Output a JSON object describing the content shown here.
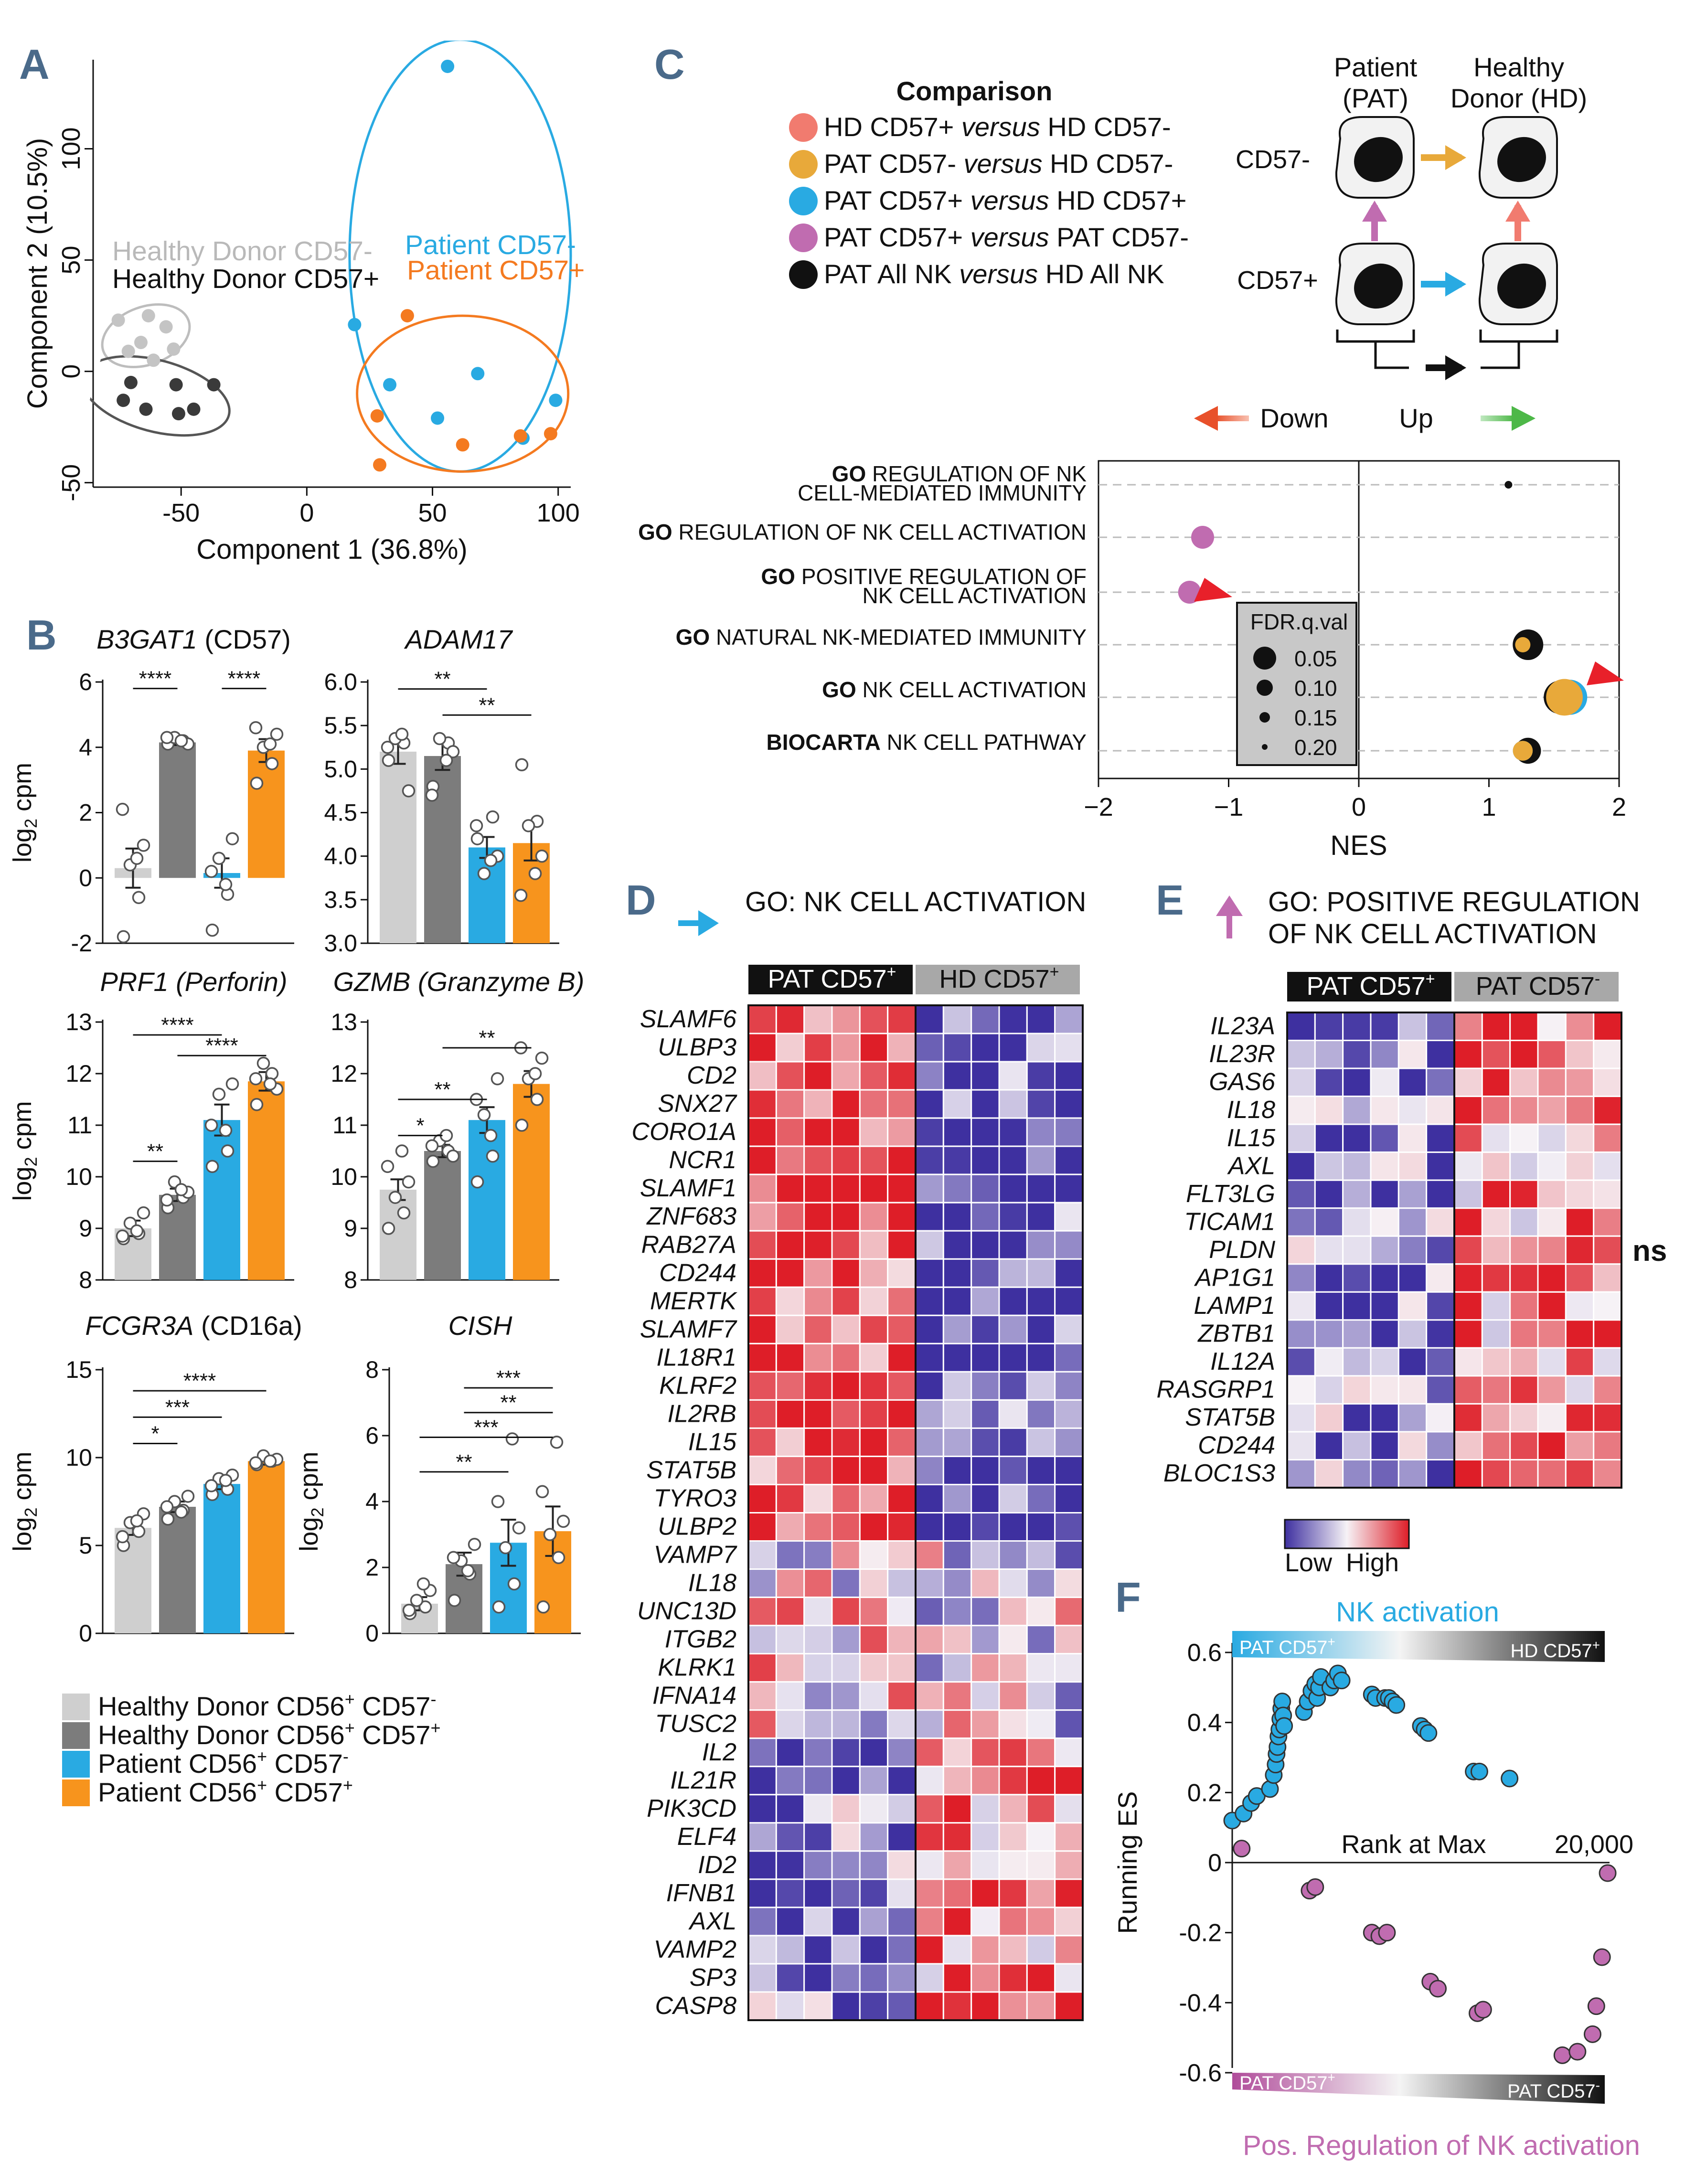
{
  "panel_letters": [
    "A",
    "B",
    "C",
    "D",
    "E",
    "F"
  ],
  "colors": {
    "hd_minus": "#cfcfcf",
    "hd_plus": "#7c7c7c",
    "pat_minus": "#29aae2",
    "pat_plus": "#f7941d",
    "salmon": "#f17b6f",
    "gold": "#e8a93a",
    "blue": "#29aae2",
    "purple": "#c06cb0",
    "black": "#111111",
    "low": "#4b3aa3",
    "high": "#d7262b",
    "arrow_red": "#e8202a"
  },
  "chart_data": [
    {
      "id": "A",
      "type": "scatter",
      "xlabel": "Component 1 (36.8%)",
      "ylabel": "Component 2 (10.5%)",
      "xlim": [
        -85,
        105
      ],
      "ylim": [
        -52,
        140
      ],
      "xticks": [
        "-50",
        "0",
        "50",
        "100"
      ],
      "yticks": [
        "-50",
        "0",
        "50",
        "100"
      ],
      "legend": [
        {
          "name": "Healthy Donor CD57-",
          "color": "#b9b9b9"
        },
        {
          "name": "Healthy Donor CD57+",
          "color": "#111111"
        },
        {
          "name": "Patient CD57-",
          "color": "#29aae2"
        },
        {
          "name": "Patient CD57+",
          "color": "#f47a20"
        }
      ],
      "series": [
        {
          "name": "Healthy Donor CD57-",
          "color": "#c4c4c4",
          "points": [
            [
              -75,
              23
            ],
            [
              -63,
              25
            ],
            [
              -56,
              20
            ],
            [
              -71,
              9
            ],
            [
              -61,
              5
            ],
            [
              -66,
              13
            ],
            [
              -53,
              10
            ]
          ]
        },
        {
          "name": "Healthy Donor CD57+",
          "color": "#3a3a3a",
          "points": [
            [
              -73,
              -13
            ],
            [
              -64,
              -17
            ],
            [
              -70,
              -5
            ],
            [
              -52,
              -6
            ],
            [
              -51,
              -19
            ],
            [
              -45,
              -17
            ],
            [
              -37,
              -6
            ]
          ]
        },
        {
          "name": "Patient CD57-",
          "color": "#29aae2",
          "points": [
            [
              56,
              137
            ],
            [
              19,
              21
            ],
            [
              33,
              -6
            ],
            [
              68,
              -1
            ],
            [
              99,
              -13
            ],
            [
              86,
              -30
            ],
            [
              52,
              -21
            ]
          ]
        },
        {
          "name": "Patient CD57+",
          "color": "#f47a20",
          "points": [
            [
              40,
              25
            ],
            [
              28,
              -20
            ],
            [
              29,
              -42
            ],
            [
              62,
              -33
            ],
            [
              85,
              -29
            ],
            [
              97,
              -28
            ]
          ]
        }
      ]
    },
    {
      "id": "B1",
      "type": "bar",
      "title": "B3GAT1",
      "title_suffix": " (CD57)",
      "ylabel": "log₂ cpm",
      "ylim": [
        -2,
        6
      ],
      "yticks": [
        "-2",
        "0",
        "2",
        "4",
        "6"
      ],
      "values": [
        0.3,
        4.15,
        0.15,
        3.9
      ],
      "errors": [
        0.6,
        0.08,
        0.45,
        0.35
      ],
      "points": [
        [
          -1.8,
          -0.6,
          0.4,
          1.0,
          2.1,
          0.6
        ],
        [
          4.1,
          4.2,
          4.3,
          4.1,
          4.3,
          4.2
        ],
        [
          -1.6,
          -0.5,
          0.6,
          1.2,
          0.2,
          -0.2
        ],
        [
          2.9,
          3.5,
          4.0,
          4.4,
          4.6,
          4.1
        ]
      ],
      "sig": [
        {
          "from": 0,
          "to": 1,
          "label": "****",
          "y": 5.8
        },
        {
          "from": 2,
          "to": 3,
          "label": "****",
          "y": 5.8
        }
      ]
    },
    {
      "id": "B2",
      "type": "bar",
      "title": "ADAM17",
      "title_suffix": "",
      "ylabel": "",
      "ylim": [
        3.0,
        6.0
      ],
      "yticks": [
        "3.0",
        "3.5",
        "4.0",
        "4.5",
        "5.0",
        "5.5",
        "6.0"
      ],
      "values": [
        5.2,
        5.15,
        4.1,
        4.15
      ],
      "errors": [
        0.14,
        0.16,
        0.12,
        0.2
      ],
      "points": [
        [
          5.1,
          5.3,
          5.35,
          4.75,
          5.25,
          5.4
        ],
        [
          4.8,
          5.3,
          5.35,
          5.2,
          4.7,
          5.1
        ],
        [
          4.2,
          4.45,
          3.8,
          4.0,
          4.35,
          3.95
        ],
        [
          5.05,
          4.4,
          4.35,
          4.0,
          3.55,
          3.8
        ]
      ],
      "sig": [
        {
          "from": 0,
          "to": 2,
          "label": "**",
          "y": 5.92
        },
        {
          "from": 1,
          "to": 3,
          "label": "**",
          "y": 5.62
        }
      ]
    },
    {
      "id": "B3",
      "type": "bar",
      "title": "PRF1 (Perforin)",
      "title_suffix": "",
      "ylabel": "log₂ cpm",
      "ylim": [
        8,
        13
      ],
      "yticks": [
        "8",
        "9",
        "10",
        "11",
        "12",
        "13"
      ],
      "values": [
        9.0,
        9.65,
        11.1,
        11.85
      ],
      "errors": [
        0.15,
        0.12,
        0.3,
        0.18
      ],
      "points": [
        [
          8.8,
          8.9,
          9.1,
          9.3,
          8.85,
          8.95
        ],
        [
          9.4,
          9.6,
          9.9,
          9.7,
          9.55,
          9.75
        ],
        [
          10.2,
          10.5,
          11.6,
          11.8,
          11.0,
          10.9
        ],
        [
          11.4,
          12.0,
          12.2,
          11.7,
          11.9,
          11.8
        ]
      ],
      "sig": [
        {
          "from": 0,
          "to": 2,
          "label": "****",
          "y": 12.75
        },
        {
          "from": 1,
          "to": 3,
          "label": "****",
          "y": 12.35
        },
        {
          "from": 0,
          "to": 1,
          "label": "**",
          "y": 10.3
        }
      ]
    },
    {
      "id": "B4",
      "type": "bar",
      "title": "GZMB (Granzyme B)",
      "title_suffix": "",
      "ylabel": "",
      "ylim": [
        8,
        13
      ],
      "yticks": [
        "8",
        "9",
        "10",
        "11",
        "12",
        "13"
      ],
      "values": [
        9.75,
        10.5,
        11.1,
        11.8
      ],
      "errors": [
        0.2,
        0.12,
        0.25,
        0.25
      ],
      "points": [
        [
          9.0,
          9.3,
          9.6,
          9.9,
          10.2,
          10.5
        ],
        [
          10.3,
          10.5,
          10.7,
          10.4,
          10.6,
          10.8
        ],
        [
          9.9,
          10.4,
          11.2,
          11.9,
          11.5,
          10.8
        ],
        [
          11.0,
          11.5,
          11.9,
          12.3,
          12.5,
          12.0
        ]
      ],
      "sig": [
        {
          "from": 1,
          "to": 3,
          "label": "**",
          "y": 12.5
        },
        {
          "from": 0,
          "to": 2,
          "label": "**",
          "y": 11.5
        },
        {
          "from": 0,
          "to": 1,
          "label": "*",
          "y": 10.8
        }
      ]
    },
    {
      "id": "B5",
      "type": "bar",
      "title": "FCGR3A",
      "title_suffix": " (CD16a)",
      "ylabel": "log₂ cpm",
      "ylim": [
        0,
        15
      ],
      "yticks": [
        "0",
        "5",
        "10",
        "15"
      ],
      "values": [
        6.0,
        7.2,
        8.5,
        9.8
      ],
      "errors": [
        0.4,
        0.3,
        0.3,
        0.2
      ],
      "points": [
        [
          5.0,
          5.8,
          6.3,
          6.8,
          5.5,
          6.4
        ],
        [
          6.5,
          7.0,
          7.5,
          7.8,
          7.2,
          6.9
        ],
        [
          7.9,
          8.2,
          8.8,
          9.0,
          8.4,
          8.7
        ],
        [
          9.6,
          9.8,
          10.1,
          9.9,
          9.7,
          9.8
        ]
      ],
      "sig": [
        {
          "from": 0,
          "to": 3,
          "label": "****",
          "y": 13.8
        },
        {
          "from": 0,
          "to": 2,
          "label": "***",
          "y": 12.3
        },
        {
          "from": 0,
          "to": 1,
          "label": "*",
          "y": 10.8
        }
      ]
    },
    {
      "id": "B6",
      "type": "bar",
      "title": "CISH",
      "title_suffix": "",
      "ylabel": "log₂ cpm",
      "ylim": [
        0,
        8
      ],
      "yticks": [
        "0",
        "2",
        "4",
        "6",
        "8"
      ],
      "values": [
        0.9,
        2.1,
        2.75,
        3.1
      ],
      "errors": [
        0.2,
        0.35,
        0.7,
        0.75
      ],
      "points": [
        [
          0.6,
          0.8,
          1.0,
          1.3,
          0.7,
          1.5
        ],
        [
          1.0,
          1.8,
          2.2,
          2.7,
          2.3,
          1.9
        ],
        [
          0.8,
          1.5,
          2.6,
          3.2,
          4.0,
          5.9
        ],
        [
          0.8,
          2.3,
          3.0,
          3.4,
          4.3,
          5.8
        ]
      ],
      "sig": [
        {
          "from": 1,
          "to": 3,
          "label": "***",
          "y": 7.45
        },
        {
          "from": 1,
          "to": 3,
          "label": "**",
          "y": 6.7
        },
        {
          "from": 0,
          "to": 3,
          "label": "***",
          "y": 5.95
        },
        {
          "from": 0,
          "to": 2,
          "label": "**",
          "y": 4.9
        }
      ]
    },
    {
      "id": "C",
      "type": "scatter",
      "xlabel": "NES",
      "xlim": [
        -2,
        2
      ],
      "xticks": [
        "−2",
        "−1",
        "0",
        "1",
        "2"
      ],
      "rows": [
        {
          "bold": "GO",
          "label": " REGULATION OF NK",
          "label2": "CELL-MEDIATED IMMUNITY"
        },
        {
          "bold": "GO",
          "label": " REGULATION OF NK CELL ACTIVATION",
          "label2": ""
        },
        {
          "bold": "GO",
          "label": " POSITIVE REGULATION OF",
          "label2": "NK CELL ACTIVATION"
        },
        {
          "bold": "GO",
          "label": " NATURAL NK-MEDIATED IMMUNITY",
          "label2": ""
        },
        {
          "bold": "GO",
          "label": " NK CELL ACTIVATION",
          "label2": ""
        },
        {
          "bold": "BIOCARTA",
          "label": " NK CELL PATHWAY",
          "label2": ""
        }
      ],
      "points": [
        {
          "row": 0,
          "nes": 1.15,
          "fdr": 0.2,
          "comparison": "black"
        },
        {
          "row": 1,
          "nes": -1.2,
          "fdr": 0.1,
          "comparison": "purple"
        },
        {
          "row": 2,
          "nes": -1.3,
          "fdr": 0.1,
          "comparison": "purple"
        },
        {
          "row": 3,
          "nes": 1.3,
          "fdr": 0.05,
          "comparison": "black"
        },
        {
          "row": 3,
          "nes": 1.26,
          "fdr": 0.15,
          "comparison": "gold"
        },
        {
          "row": 4,
          "nes": 1.55,
          "fdr": 0.03,
          "comparison": "black"
        },
        {
          "row": 4,
          "nes": 1.62,
          "fdr": 0.02,
          "comparison": "blue"
        },
        {
          "row": 4,
          "nes": 1.58,
          "fdr": 0.01,
          "comparison": "gold"
        },
        {
          "row": 5,
          "nes": 1.3,
          "fdr": 0.08,
          "comparison": "black"
        },
        {
          "row": 5,
          "nes": 1.26,
          "fdr": 0.12,
          "comparison": "blue"
        },
        {
          "row": 5,
          "nes": 1.26,
          "fdr": 0.12,
          "comparison": "gold"
        }
      ],
      "size_legend": {
        "title": "FDR.q.val",
        "values": [
          "0.05",
          "0.10",
          "0.15",
          "0.20"
        ]
      },
      "direction": {
        "down": "Down",
        "up": "Up"
      },
      "comparisons": {
        "title": "Comparison",
        "items": [
          {
            "color": "#f17b6f",
            "a": "HD CD57+",
            "b": "HD CD57-"
          },
          {
            "color": "#e8a93a",
            "a": "PAT CD57-",
            "b": "HD CD57-"
          },
          {
            "color": "#29aae2",
            "a": "PAT CD57+",
            "b": "HD CD57+"
          },
          {
            "color": "#c06cb0",
            "a": "PAT CD57+",
            "b": "PAT CD57-"
          },
          {
            "color": "#111111",
            "a": "PAT All NK",
            "b": "HD All NK"
          }
        ],
        "versus": "versus"
      },
      "schematic": {
        "patient": "Patient",
        "patient2": "(PAT)",
        "donor": "Healthy",
        "donor2": "Donor (HD)",
        "minus": "CD57-",
        "plus": "CD57+"
      }
    },
    {
      "id": "D",
      "type": "heatmap",
      "title": "GO: NK CELL ACTIVATION",
      "groups": [
        "PAT CD57",
        "HD CD57"
      ],
      "group_sup": [
        "+",
        "+"
      ],
      "rows": [
        "SLAMF6",
        "ULBP3",
        "CD2",
        "SNX27",
        "CORO1A",
        "NCR1",
        "SLAMF1",
        "ZNF683",
        "RAB27A",
        "CD244",
        "MERTK",
        "SLAMF7",
        "IL18R1",
        "KLRF2",
        "IL2RB",
        "IL15",
        "STAT5B",
        "TYRO3",
        "ULBP2",
        "VAMP7",
        "IL18",
        "UNC13D",
        "ITGB2",
        "KLRK1",
        "IFNA14",
        "TUSC2",
        "IL2",
        "IL21R",
        "PIK3CD",
        "ELF4",
        "ID2",
        "IFNB1",
        "AXL",
        "VAMP2",
        "SP3",
        "CASP8"
      ],
      "ncols": 12,
      "split": 6
    },
    {
      "id": "E",
      "type": "heatmap",
      "title": "GO: POSITIVE REGULATION",
      "title2": "OF NK CELL ACTIVATION",
      "groups": [
        "PAT CD57",
        "PAT CD57"
      ],
      "group_sup": [
        "+",
        "-"
      ],
      "rows": [
        "IL23A",
        "IL23R",
        "GAS6",
        "IL18",
        "IL15",
        "AXL",
        "FLT3LG",
        "TICAM1",
        "PLDN",
        "AP1G1",
        "LAMP1",
        "ZBTB1",
        "IL12A",
        "RASGRP1",
        "STAT5B",
        "CD244",
        "BLOC1S3"
      ],
      "ncols": 12,
      "split": 6,
      "side_label": "ns",
      "scale": {
        "low": "Low",
        "high": "High"
      }
    },
    {
      "id": "F",
      "type": "scatter",
      "ylabel": "Running ES",
      "ylim": [
        -0.6,
        0.6
      ],
      "yticks": [
        "0.6",
        "0.4",
        "0.2",
        "0",
        "-0.2",
        "-0.4",
        "-0.6"
      ],
      "xlim": [
        0,
        20000
      ],
      "top_title": "NK activation",
      "bottom_title": "Pos. Regulation of NK activation",
      "top_bar": [
        "PAT CD57",
        "HD CD57"
      ],
      "bottom_bar": [
        "PAT CD57",
        "PAT CD57"
      ],
      "top_bar_sup": [
        "+",
        "+"
      ],
      "bottom_bar_sup": [
        "+",
        "-"
      ],
      "annotation": "Rank at Max",
      "rank_label": "20,000",
      "series": [
        {
          "name": "NK activation",
          "color": "#29aae2",
          "x": [
            0,
            600,
            1000,
            1300,
            2000,
            2200,
            2300,
            2350,
            2400,
            2450,
            2500,
            2550,
            2600,
            2650,
            2700,
            2750,
            3800,
            4000,
            4200,
            4400,
            4500,
            4600,
            4700,
            5200,
            5400,
            5600,
            5800,
            7400,
            7600,
            8100,
            8300,
            8500,
            8700,
            10000,
            10200,
            10400,
            12800,
            13100,
            14700
          ],
          "y": [
            0.12,
            0.14,
            0.17,
            0.19,
            0.21,
            0.25,
            0.28,
            0.31,
            0.33,
            0.36,
            0.38,
            0.41,
            0.44,
            0.46,
            0.42,
            0.39,
            0.43,
            0.46,
            0.49,
            0.51,
            0.47,
            0.5,
            0.53,
            0.5,
            0.52,
            0.54,
            0.52,
            0.48,
            0.47,
            0.47,
            0.47,
            0.46,
            0.45,
            0.39,
            0.38,
            0.37,
            0.26,
            0.26,
            0.24
          ]
        },
        {
          "name": "Pos. Regulation of NK activation",
          "color": "#c06cb0",
          "x": [
            500,
            4100,
            4400,
            7400,
            7800,
            8200,
            10500,
            10900,
            13000,
            13300,
            17500,
            18300,
            19100,
            19300,
            19600,
            19900
          ],
          "y": [
            0.04,
            -0.08,
            -0.07,
            -0.2,
            -0.21,
            -0.2,
            -0.34,
            -0.36,
            -0.43,
            -0.42,
            -0.55,
            -0.54,
            -0.49,
            -0.41,
            -0.27,
            -0.03
          ]
        }
      ]
    }
  ],
  "legendB": [
    {
      "text": "Healthy Donor CD56",
      "s1": "+",
      "t2": " CD57",
      "s2": "-",
      "color": "#cfcfcf"
    },
    {
      "text": "Healthy Donor CD56",
      "s1": "+",
      "t2": " CD57",
      "s2": "+",
      "color": "#7c7c7c"
    },
    {
      "text": "Patient CD56",
      "s1": "+",
      "t2": " CD57",
      "s2": "-",
      "color": "#29aae2"
    },
    {
      "text": "Patient CD56",
      "s1": "+",
      "t2": " CD57",
      "s2": "+",
      "color": "#f7941d"
    }
  ]
}
